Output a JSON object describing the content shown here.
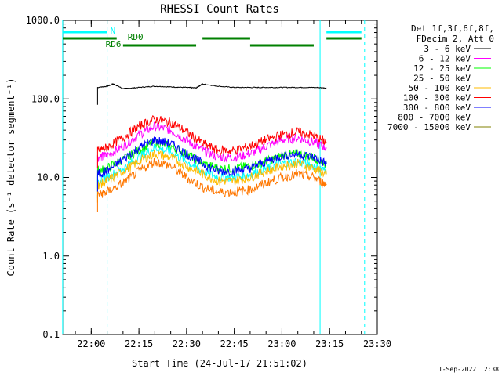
{
  "chart_data": {
    "type": "line",
    "title": "RHESSI Count Rates",
    "xlabel": "Start Time (24-Jul-17 21:51:02)",
    "ylabel": "Count Rate (s⁻¹ detector segment⁻¹)",
    "y_scale": "log",
    "ylim": [
      0.1,
      1000
    ],
    "xlim": [
      "21:51:02",
      "23:30:00"
    ],
    "x_ticks": [
      "22:00",
      "22:15",
      "22:30",
      "22:45",
      "23:00",
      "23:15",
      "23:30"
    ],
    "y_ticks": [
      "0.1",
      "1.0",
      "10.0",
      "100.0",
      "1000.0"
    ],
    "legend_placement": "right",
    "legend_header": [
      "Det 1f,3f,6f,8f,",
      "FDecim 2, Att 0"
    ],
    "series": [
      {
        "name": "3 - 6 keV",
        "color": "#000000",
        "x": [
          "22:02",
          "22:05",
          "22:07",
          "22:10",
          "22:15",
          "22:20",
          "22:25",
          "22:30",
          "22:33",
          "22:35",
          "22:40",
          "22:45",
          "22:50",
          "22:55",
          "23:00",
          "23:05",
          "23:10",
          "23:14"
        ],
        "y": [
          140,
          145,
          155,
          135,
          140,
          145,
          142,
          140,
          138,
          155,
          145,
          140,
          140,
          140,
          140,
          140,
          140,
          138
        ]
      },
      {
        "name": "6 - 12 keV",
        "color": "#ff00ff",
        "x": [
          "22:02",
          "22:05",
          "22:10",
          "22:15",
          "22:20",
          "22:25",
          "22:30",
          "22:35",
          "22:40",
          "22:45",
          "22:50",
          "22:55",
          "23:00",
          "23:05",
          "23:10",
          "23:14"
        ],
        "y": [
          18,
          19,
          25,
          35,
          45,
          40,
          30,
          22,
          18,
          18,
          20,
          25,
          30,
          32,
          28,
          24
        ]
      },
      {
        "name": "12 - 25 keV",
        "color": "#00ff00",
        "x": [
          "22:02",
          "22:05",
          "22:10",
          "22:15",
          "22:20",
          "22:25",
          "22:30",
          "22:35",
          "22:40",
          "22:45",
          "22:50",
          "22:55",
          "23:00",
          "23:05",
          "23:10",
          "23:14"
        ],
        "y": [
          12,
          13,
          17,
          22,
          28,
          25,
          20,
          15,
          13,
          13,
          14,
          16,
          19,
          20,
          18,
          15
        ]
      },
      {
        "name": "25 - 50 keV",
        "color": "#00ffff",
        "x": [
          "22:02",
          "22:05",
          "22:10",
          "22:15",
          "22:20",
          "22:25",
          "22:30",
          "22:35",
          "22:40",
          "22:45",
          "22:50",
          "22:55",
          "23:00",
          "23:05",
          "23:10",
          "23:14"
        ],
        "y": [
          9,
          10,
          13,
          18,
          24,
          21,
          16,
          12,
          10,
          10,
          11,
          13,
          15,
          16,
          14,
          12
        ]
      },
      {
        "name": "50 - 100 keV",
        "color": "#ffbb00",
        "x": [
          "22:02",
          "22:05",
          "22:10",
          "22:15",
          "22:20",
          "22:25",
          "22:30",
          "22:35",
          "22:40",
          "22:45",
          "22:50",
          "22:55",
          "23:00",
          "23:05",
          "23:10",
          "23:14"
        ],
        "y": [
          8,
          9,
          12,
          16,
          20,
          18,
          14,
          11,
          9,
          9,
          10,
          12,
          14,
          15,
          13,
          11
        ]
      },
      {
        "name": "100 - 300 keV",
        "color": "#ff0000",
        "x": [
          "22:02",
          "22:05",
          "22:10",
          "22:15",
          "22:20",
          "22:25",
          "22:30",
          "22:35",
          "22:40",
          "22:45",
          "22:50",
          "22:55",
          "23:00",
          "23:05",
          "23:10",
          "23:14"
        ],
        "y": [
          22,
          24,
          32,
          45,
          55,
          50,
          38,
          27,
          22,
          22,
          25,
          30,
          35,
          38,
          34,
          28
        ]
      },
      {
        "name": "300 - 800 keV",
        "color": "#0000ff",
        "x": [
          "22:02",
          "22:05",
          "22:10",
          "22:15",
          "22:20",
          "22:25",
          "22:30",
          "22:35",
          "22:40",
          "22:45",
          "22:50",
          "22:55",
          "23:00",
          "23:05",
          "23:10",
          "23:14"
        ],
        "y": [
          11,
          12,
          17,
          24,
          30,
          27,
          20,
          15,
          12,
          12,
          13,
          16,
          19,
          20,
          18,
          15
        ]
      },
      {
        "name": "800 - 7000 keV",
        "color": "#ff7700",
        "x": [
          "22:02",
          "22:05",
          "22:10",
          "22:15",
          "22:20",
          "22:25",
          "22:30",
          "22:35",
          "22:40",
          "22:45",
          "22:50",
          "22:55",
          "23:00",
          "23:05",
          "23:10",
          "23:14"
        ],
        "y": [
          6,
          6.5,
          8.5,
          12,
          16,
          14,
          10,
          7.5,
          6.5,
          6.5,
          7,
          8.5,
          10,
          11,
          10,
          8
        ]
      },
      {
        "name": "7000 - 15000 keV",
        "color": "#808000",
        "x": [],
        "y": []
      }
    ],
    "attenuator_bars": [
      {
        "label": "N",
        "color": "#00ffff",
        "segments": [
          [
            "21:51",
            "22:05"
          ],
          [
            "23:14",
            "23:25"
          ]
        ]
      },
      {
        "label": "RD0",
        "color": "#008000",
        "segments": [
          [
            "21:51",
            "22:08"
          ],
          [
            "22:35",
            "22:50"
          ],
          [
            "23:14",
            "23:25"
          ]
        ]
      },
      {
        "label": "RD6",
        "color": "#008000",
        "segments": [
          [
            "22:10",
            "22:33"
          ],
          [
            "22:50",
            "23:10"
          ]
        ]
      }
    ],
    "vertical_markers": [
      {
        "x": "21:51",
        "style": "solid",
        "color": "#00ffff"
      },
      {
        "x": "22:05",
        "style": "dashed",
        "color": "#00ffff"
      },
      {
        "x": "23:12",
        "style": "solid",
        "color": "#00ffff"
      },
      {
        "x": "23:26",
        "style": "dashed",
        "color": "#00ffff"
      }
    ]
  },
  "footer": {
    "timestamp": "1-Sep-2022 12:38"
  }
}
